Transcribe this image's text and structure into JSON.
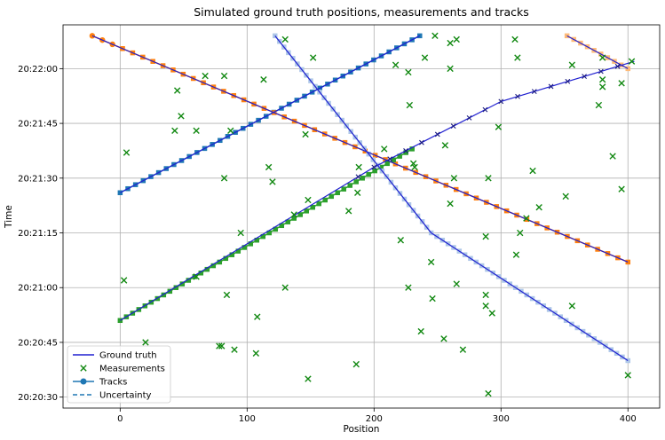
{
  "chart_data": {
    "type": "scatter",
    "title": "Simulated ground truth positions, measurements and tracks",
    "xlabel": "Position",
    "ylabel": "Time",
    "xlim": [
      -45,
      425
    ],
    "ylim": [
      "20:20:27",
      "20:22:12"
    ],
    "x_ticks": [
      0,
      100,
      200,
      300,
      400
    ],
    "y_ticks": [
      "20:20:30",
      "20:20:45",
      "20:21:00",
      "20:21:15",
      "20:21:30",
      "20:21:45",
      "20:22:00"
    ],
    "grid": true,
    "legend": {
      "location": "lower-left",
      "entries": [
        {
          "label": "Ground truth",
          "style": "line",
          "color": "#2020d0"
        },
        {
          "label": "Measurements",
          "style": "x",
          "color": "#118811"
        },
        {
          "label": "Tracks",
          "style": "line-marker",
          "color": "#1f77b4"
        },
        {
          "label": "Uncertainty",
          "style": "dashed",
          "color": "#1f77b4"
        }
      ]
    },
    "tracks": [
      {
        "color": "#1f77b4",
        "marker": "square",
        "start": [
          0,
          "20:21:26"
        ],
        "end": [
          236,
          "20:22:09"
        ],
        "points": 40
      },
      {
        "color": "#ff7f0e",
        "marker": "circle-square",
        "start": [
          -22,
          "20:22:09"
        ],
        "end": [
          400,
          "20:21:07"
        ],
        "points": 54
      },
      {
        "color": "#2ca02c",
        "marker": "square",
        "start": [
          0,
          "20:20:51"
        ],
        "end": [
          230,
          "20:21:38"
        ],
        "points": 48
      },
      {
        "color": "#aec7e8",
        "marker": "x-square",
        "start": [
          122,
          "20:22:09"
        ],
        "end": [
          400,
          "20:20:40"
        ],
        "points": 70,
        "shape": "split",
        "mid": [
          245,
          "20:21:15"
        ]
      },
      {
        "color": "#ffbb78",
        "marker": "x-square",
        "start": [
          352,
          "20:22:09"
        ],
        "end": [
          400,
          "20:22:00"
        ],
        "points": 10
      }
    ],
    "ground_truth": [
      {
        "points": [
          [
            0,
            "20:21:26"
          ],
          [
            236,
            "20:22:09"
          ]
        ]
      },
      {
        "points": [
          [
            -22,
            "20:22:09"
          ],
          [
            400,
            "20:21:07"
          ]
        ]
      },
      {
        "points": [
          [
            0,
            "20:20:51"
          ],
          [
            100,
            "20:21:12"
          ],
          [
            200,
            "20:21:33"
          ],
          [
            300,
            "20:21:51"
          ],
          [
            405,
            "20:22:02"
          ]
        ]
      },
      {
        "points": [
          [
            122,
            "20:22:09"
          ],
          [
            245,
            "20:21:15"
          ],
          [
            400,
            "20:20:40"
          ]
        ]
      },
      {
        "points": [
          [
            352,
            "20:22:09"
          ],
          [
            400,
            "20:22:00"
          ]
        ]
      }
    ],
    "measurements": [
      [
        130,
        "20:22:08"
      ],
      [
        248,
        "20:22:09"
      ],
      [
        260,
        "20:22:07"
      ],
      [
        265,
        "20:22:08"
      ],
      [
        311,
        "20:22:08"
      ],
      [
        403,
        "20:22:02"
      ],
      [
        152,
        "20:22:03"
      ],
      [
        240,
        "20:22:03"
      ],
      [
        260,
        "20:22:00"
      ],
      [
        313,
        "20:22:03"
      ],
      [
        380,
        "20:22:03"
      ],
      [
        67,
        "20:21:58"
      ],
      [
        82,
        "20:21:58"
      ],
      [
        113,
        "20:21:57"
      ],
      [
        217,
        "20:22:01"
      ],
      [
        227,
        "20:21:59"
      ],
      [
        356,
        "20:22:01"
      ],
      [
        45,
        "20:21:54"
      ],
      [
        380,
        "20:21:57"
      ],
      [
        395,
        "20:21:56"
      ],
      [
        380,
        "20:21:55"
      ],
      [
        48,
        "20:21:47"
      ],
      [
        228,
        "20:21:50"
      ],
      [
        377,
        "20:21:50"
      ],
      [
        43,
        "20:21:43"
      ],
      [
        60,
        "20:21:43"
      ],
      [
        87,
        "20:21:43"
      ],
      [
        146,
        "20:21:42"
      ],
      [
        298,
        "20:21:44"
      ],
      [
        5,
        "20:21:37"
      ],
      [
        256,
        "20:21:39"
      ],
      [
        208,
        "20:21:38"
      ],
      [
        388,
        "20:21:36"
      ],
      [
        117,
        "20:21:33"
      ],
      [
        188,
        "20:21:33"
      ],
      [
        231,
        "20:21:34"
      ],
      [
        232,
        "20:21:33"
      ],
      [
        325,
        "20:21:32"
      ],
      [
        82,
        "20:21:30"
      ],
      [
        120,
        "20:21:29"
      ],
      [
        263,
        "20:21:30"
      ],
      [
        290,
        "20:21:30"
      ],
      [
        187,
        "20:21:26"
      ],
      [
        351,
        "20:21:25"
      ],
      [
        395,
        "20:21:27"
      ],
      [
        148,
        "20:21:24"
      ],
      [
        260,
        "20:21:23"
      ],
      [
        330,
        "20:21:22"
      ],
      [
        320,
        "20:21:19"
      ],
      [
        137,
        "20:21:20"
      ],
      [
        180,
        "20:21:21"
      ],
      [
        95,
        "20:21:15"
      ],
      [
        221,
        "20:21:13"
      ],
      [
        288,
        "20:21:14"
      ],
      [
        315,
        "20:21:15"
      ],
      [
        245,
        "20:21:07"
      ],
      [
        312,
        "20:21:09"
      ],
      [
        3,
        "20:21:02"
      ],
      [
        60,
        "20:21:03"
      ],
      [
        130,
        "20:21:00"
      ],
      [
        227,
        "20:21:00"
      ],
      [
        265,
        "20:21:01"
      ],
      [
        84,
        "20:20:58"
      ],
      [
        246,
        "20:20:57"
      ],
      [
        288,
        "20:20:58"
      ],
      [
        288,
        "20:20:55"
      ],
      [
        293,
        "20:20:53"
      ],
      [
        356,
        "20:20:55"
      ],
      [
        108,
        "20:20:52"
      ],
      [
        237,
        "20:20:48"
      ],
      [
        255,
        "20:20:46"
      ],
      [
        20,
        "20:20:45"
      ],
      [
        78,
        "20:20:44"
      ],
      [
        80,
        "20:20:44"
      ],
      [
        90,
        "20:20:43"
      ],
      [
        107,
        "20:20:42"
      ],
      [
        270,
        "20:20:43"
      ],
      [
        186,
        "20:20:39"
      ],
      [
        148,
        "20:20:35"
      ],
      [
        290,
        "20:20:31"
      ],
      [
        400,
        "20:20:36"
      ]
    ]
  }
}
